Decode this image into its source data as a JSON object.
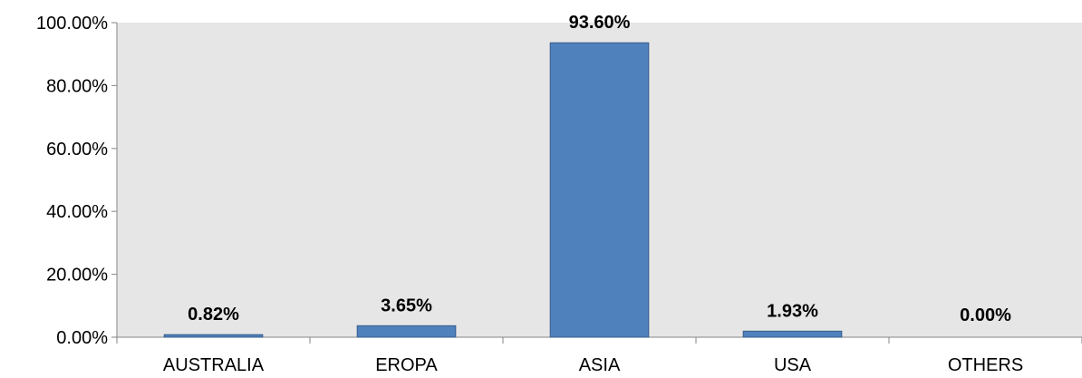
{
  "chart_data": {
    "type": "bar",
    "categories": [
      "AUSTRALIA",
      "EROPA",
      "ASIA",
      "USA",
      "OTHERS"
    ],
    "values": [
      0.82,
      3.65,
      93.6,
      1.93,
      0.0
    ],
    "data_labels": [
      "0.82%",
      "3.65%",
      "93.60%",
      "1.93%",
      "0.00%"
    ],
    "ylim": [
      0,
      100
    ],
    "y_ticks": [
      0,
      20,
      40,
      60,
      80,
      100
    ],
    "y_tick_labels": [
      "0.00%",
      "20.00%",
      "40.00%",
      "60.00%",
      "80.00%",
      "100.00%"
    ],
    "grid": false,
    "legend": "none",
    "bar_color": "#4f81bd",
    "bar_edge_color": "#385d8a",
    "plot_background": "#e6e6e6"
  }
}
